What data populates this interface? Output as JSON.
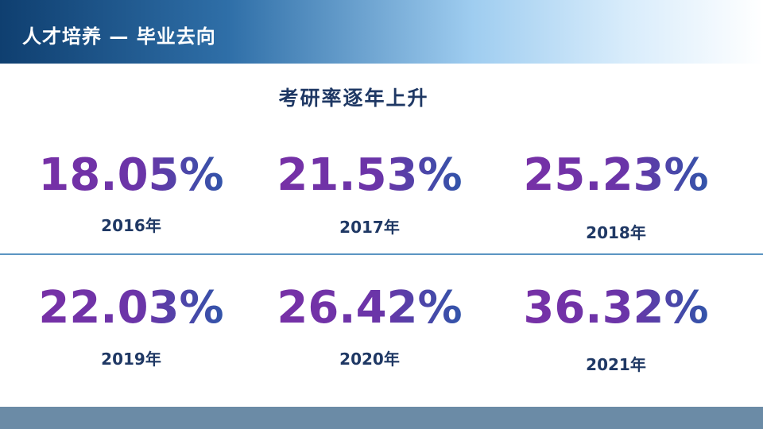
{
  "header": {
    "title": "人才培养 — 毕业去向"
  },
  "subtitle": "考研率逐年上升",
  "stats": [
    {
      "value": "18.05%",
      "year": "2016年"
    },
    {
      "value": "21.53%",
      "year": "2017年"
    },
    {
      "value": "25.23%",
      "year": "2018年"
    },
    {
      "value": "22.03%",
      "year": "2019年"
    },
    {
      "value": "26.42%",
      "year": "2020年"
    },
    {
      "value": "36.32%",
      "year": "2021年"
    }
  ]
}
